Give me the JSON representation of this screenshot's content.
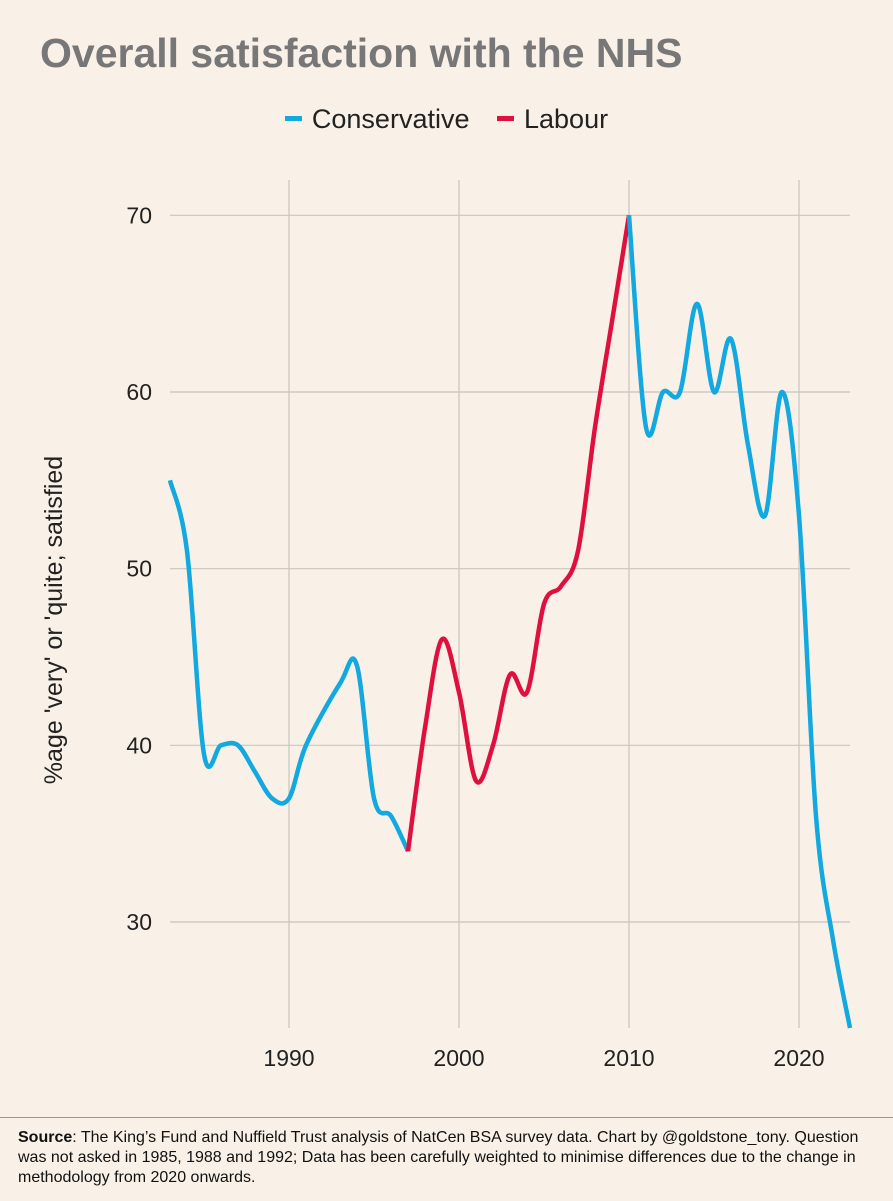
{
  "chart_data": {
    "type": "line",
    "title": "Overall satisfaction with the NHS",
    "ylabel": "%age 'very' or 'quite; satisfied",
    "xlabel": "",
    "xlim": [
      1983,
      2023
    ],
    "ylim": [
      24,
      72
    ],
    "x_ticks": [
      1990,
      2000,
      2010,
      2020
    ],
    "y_ticks": [
      30,
      40,
      50,
      60,
      70
    ],
    "legend": [
      {
        "name": "Conservative",
        "color": "#12a8e0"
      },
      {
        "name": "Labour",
        "color": "#e0103e"
      }
    ],
    "series": [
      {
        "name": "Conservative",
        "color": "#12a8e0",
        "points": [
          [
            1983,
            55
          ],
          [
            1984,
            51
          ],
          [
            1985,
            39.5
          ],
          [
            1986,
            40
          ],
          [
            1987,
            40
          ],
          [
            1988,
            38.5
          ],
          [
            1989,
            37
          ],
          [
            1990,
            37
          ],
          [
            1991,
            40
          ],
          [
            1993,
            43.5
          ],
          [
            1994,
            44.5
          ],
          [
            1995,
            37
          ],
          [
            1996,
            36
          ],
          [
            1997,
            34
          ]
        ]
      },
      {
        "name": "Labour",
        "color": "#e0103e",
        "points": [
          [
            1997,
            34
          ],
          [
            1998,
            41
          ],
          [
            1999,
            46
          ],
          [
            2000,
            43
          ],
          [
            2001,
            38
          ],
          [
            2002,
            40
          ],
          [
            2003,
            44
          ],
          [
            2004,
            43
          ],
          [
            2005,
            48
          ],
          [
            2006,
            49
          ],
          [
            2007,
            51
          ],
          [
            2008,
            58
          ],
          [
            2009,
            64
          ],
          [
            2010,
            70
          ]
        ]
      },
      {
        "name": "Conservative",
        "color": "#12a8e0",
        "points": [
          [
            2010,
            70
          ],
          [
            2011,
            58
          ],
          [
            2012,
            60
          ],
          [
            2013,
            60
          ],
          [
            2014,
            65
          ],
          [
            2015,
            60
          ],
          [
            2016,
            63
          ],
          [
            2017,
            57
          ],
          [
            2018,
            53
          ],
          [
            2019,
            60
          ],
          [
            2020,
            53
          ],
          [
            2021,
            36
          ],
          [
            2022,
            29
          ],
          [
            2023,
            24
          ]
        ]
      }
    ]
  },
  "footer": {
    "source_label": "Source",
    "source_text": ": The King’s Fund and Nuffield Trust analysis of NatCen BSA survey data. Chart by @goldstone_tony. Question was not asked in 1985, 1988 and 1992; Data has been carefully weighted to minimise differences due to the change in methodology from 2020 onwards."
  }
}
